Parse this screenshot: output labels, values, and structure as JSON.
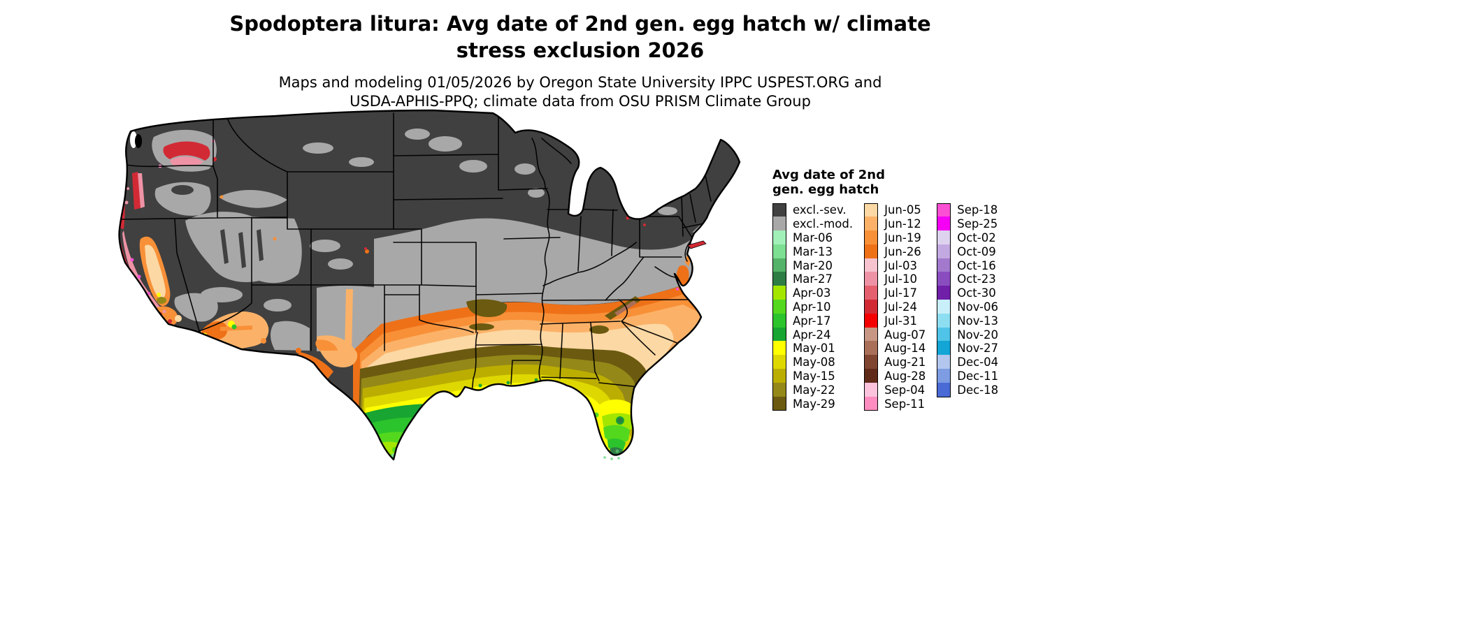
{
  "title": {
    "line1": "Spodoptera litura: Avg date of 2nd gen. egg hatch w/ climate",
    "line2": "stress exclusion 2026"
  },
  "subtitle": {
    "line1": "Maps and modeling 01/05/2026 by Oregon State University IPPC USPEST.ORG and",
    "line2": "USDA-APHIS-PPQ; climate data from OSU PRISM Climate Group"
  },
  "legend": {
    "title_line1": "Avg date of 2nd",
    "title_line2": "gen. egg hatch",
    "columns": [
      [
        {
          "label": "excl.-sev.",
          "color": "#404040"
        },
        {
          "label": "excl.-mod.",
          "color": "#a8a8a8"
        },
        {
          "label": "Mar-06",
          "color": "#a0f0b8"
        },
        {
          "label": "Mar-13",
          "color": "#7ddf92"
        },
        {
          "label": "Mar-20",
          "color": "#55b369"
        },
        {
          "label": "Mar-27",
          "color": "#2e7d44"
        },
        {
          "label": "Apr-03",
          "color": "#a4e600"
        },
        {
          "label": "Apr-10",
          "color": "#54d81e"
        },
        {
          "label": "Apr-17",
          "color": "#2cc42c"
        },
        {
          "label": "Apr-24",
          "color": "#18a532"
        },
        {
          "label": "May-01",
          "color": "#ffff00"
        },
        {
          "label": "May-08",
          "color": "#dfd800"
        },
        {
          "label": "May-15",
          "color": "#bcae00"
        },
        {
          "label": "May-22",
          "color": "#948818"
        },
        {
          "label": "May-29",
          "color": "#6b5a10"
        }
      ],
      [
        {
          "label": "Jun-05",
          "color": "#fcd8a4"
        },
        {
          "label": "Jun-12",
          "color": "#fbb268"
        },
        {
          "label": "Jun-19",
          "color": "#f89038"
        },
        {
          "label": "Jun-26",
          "color": "#ee7118"
        },
        {
          "label": "Jul-03",
          "color": "#f6c3ce"
        },
        {
          "label": "Jul-10",
          "color": "#ee93a5"
        },
        {
          "label": "Jul-17",
          "color": "#e4606e"
        },
        {
          "label": "Jul-24",
          "color": "#d22a35"
        },
        {
          "label": "Jul-31",
          "color": "#f40000"
        },
        {
          "label": "Aug-07",
          "color": "#c79784"
        },
        {
          "label": "Aug-14",
          "color": "#a96f58"
        },
        {
          "label": "Aug-21",
          "color": "#7f4530"
        },
        {
          "label": "Aug-28",
          "color": "#5f2a18"
        },
        {
          "label": "Sep-04",
          "color": "#fcc3dc"
        },
        {
          "label": "Sep-11",
          "color": "#fd8cc0"
        }
      ],
      [
        {
          "label": "Sep-18",
          "color": "#fb50d4"
        },
        {
          "label": "Sep-25",
          "color": "#f500f5"
        },
        {
          "label": "Oct-02",
          "color": "#ded3ee"
        },
        {
          "label": "Oct-09",
          "color": "#c3a9e1"
        },
        {
          "label": "Oct-16",
          "color": "#a379cd"
        },
        {
          "label": "Oct-23",
          "color": "#8a4dc0"
        },
        {
          "label": "Oct-30",
          "color": "#7020a8"
        },
        {
          "label": "Nov-06",
          "color": "#c9f0fa"
        },
        {
          "label": "Nov-13",
          "color": "#8edef2"
        },
        {
          "label": "Nov-20",
          "color": "#50c4e8"
        },
        {
          "label": "Nov-27",
          "color": "#12a5d5"
        },
        {
          "label": "Dec-04",
          "color": "#b3c7ee"
        },
        {
          "label": "Dec-11",
          "color": "#7d9ce2"
        },
        {
          "label": "Dec-18",
          "color": "#4a6ad5"
        }
      ]
    ]
  }
}
